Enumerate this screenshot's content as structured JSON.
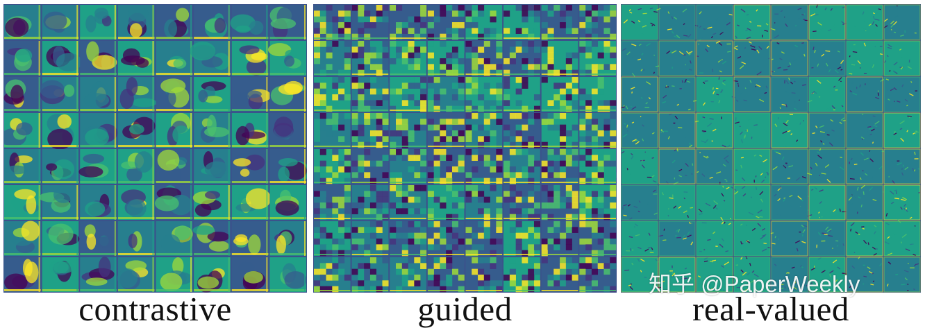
{
  "figure": {
    "panels": [
      {
        "id": "contrastive",
        "caption": "contrastive",
        "texture": "blob"
      },
      {
        "id": "guided",
        "caption": "guided",
        "texture": "pixel"
      },
      {
        "id": "real-valued",
        "caption": "real-valued",
        "texture": "edge"
      }
    ],
    "grid": {
      "rows": 8,
      "cols": 8
    },
    "colormap": [
      "#440154",
      "#46327e",
      "#365c8d",
      "#277f8e",
      "#1fa187",
      "#4ac16d",
      "#a0da39",
      "#fde725"
    ]
  },
  "watermark": "知乎 @PaperWeekly"
}
